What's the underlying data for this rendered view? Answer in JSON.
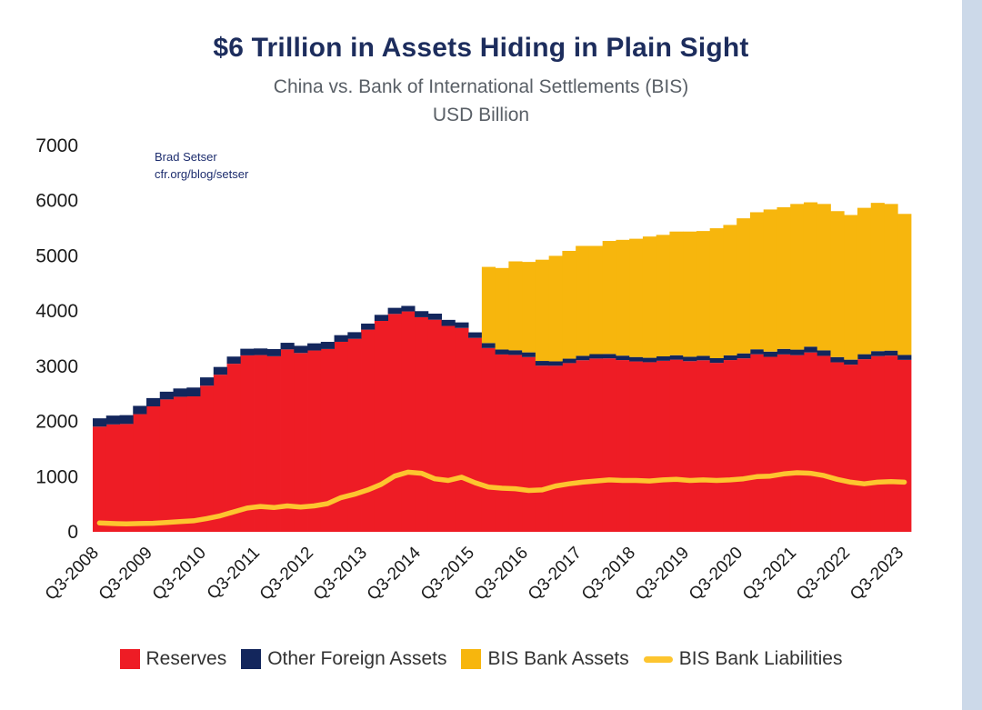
{
  "page": {
    "background": "#ffffff",
    "right_strip_color": "#ccd9e9"
  },
  "annotation": {
    "line1": "Brad Setser",
    "line2": "cfr.org/blog/setser"
  },
  "chart_data": {
    "type": "bar",
    "subtype": "stacked-bars-with-line-overlay",
    "title": "$6 Trillion in Assets Hiding in Plain Sight",
    "subtitle": "China vs. Bank of International Settlements (BIS)",
    "units_label": "USD Billion",
    "xlabel": "",
    "ylabel": "",
    "ylim": [
      0,
      7000
    ],
    "y_ticks": [
      0,
      1000,
      2000,
      3000,
      4000,
      5000,
      6000,
      7000
    ],
    "grid": "off",
    "legend_position": "bottom",
    "n_points": 61,
    "tick_every": 4,
    "x_start_quarter": "Q3-2008",
    "x_end_quarter": "Q3-2023",
    "x_tick_labels": [
      "Q3-2008",
      "Q3-2009",
      "Q3-2010",
      "Q3-2011",
      "Q3-2012",
      "Q3-2013",
      "Q3-2014",
      "Q3-2015",
      "Q3-2016",
      "Q3-2017",
      "Q3-2018",
      "Q3-2019",
      "Q3-2020",
      "Q3-2021",
      "Q3-2022",
      "Q3-2023"
    ],
    "series": [
      {
        "name": "Reserves",
        "type": "bar",
        "color": "#ee1c25",
        "values": [
          1906,
          1946,
          1954,
          2132,
          2273,
          2399,
          2447,
          2454,
          2648,
          2847,
          3045,
          3197,
          3202,
          3181,
          3305,
          3240,
          3285,
          3312,
          3443,
          3497,
          3663,
          3821,
          3948,
          3993,
          3888,
          3843,
          3730,
          3694,
          3514,
          3330,
          3213,
          3205,
          3166,
          3011,
          3009,
          3057,
          3109,
          3140,
          3143,
          3112,
          3087,
          3073,
          3099,
          3119,
          3092,
          3108,
          3061,
          3112,
          3143,
          3217,
          3170,
          3214,
          3201,
          3250,
          3188,
          3071,
          3029,
          3128,
          3184,
          3193,
          3115
        ]
      },
      {
        "name": "Other Foreign Assets",
        "type": "bar",
        "color": "#13265c",
        "values": [
          150,
          160,
          160,
          150,
          150,
          140,
          150,
          160,
          150,
          140,
          130,
          120,
          120,
          130,
          120,
          130,
          130,
          130,
          120,
          120,
          110,
          110,
          110,
          100,
          110,
          110,
          110,
          100,
          100,
          90,
          90,
          85,
          85,
          85,
          80,
          80,
          80,
          80,
          80,
          80,
          80,
          80,
          80,
          80,
          80,
          80,
          85,
          85,
          90,
          90,
          95,
          100,
          100,
          105,
          100,
          95,
          90,
          90,
          90,
          90,
          90
        ]
      },
      {
        "name": "BIS Bank Assets",
        "type": "bar",
        "color": "#f7b60d",
        "values": [
          0,
          0,
          0,
          0,
          0,
          0,
          0,
          0,
          0,
          0,
          0,
          0,
          0,
          0,
          0,
          0,
          0,
          0,
          0,
          0,
          0,
          0,
          0,
          0,
          0,
          0,
          0,
          0,
          0,
          1380,
          1477,
          1610,
          1639,
          1834,
          1911,
          1953,
          1991,
          1960,
          2047,
          2098,
          2143,
          2197,
          2201,
          2241,
          2268,
          2262,
          2354,
          2363,
          2447,
          2483,
          2575,
          2566,
          2639,
          2615,
          2652,
          2644,
          2621,
          2652,
          2686,
          2657,
          2555
        ]
      },
      {
        "name": "BIS Bank Liabilities",
        "type": "line",
        "color": "#fdc52f",
        "values": [
          160,
          150,
          145,
          150,
          155,
          170,
          185,
          200,
          240,
          290,
          360,
          430,
          460,
          440,
          470,
          450,
          470,
          510,
          620,
          680,
          760,
          860,
          1010,
          1080,
          1060,
          960,
          930,
          990,
          890,
          810,
          790,
          780,
          750,
          760,
          830,
          870,
          900,
          920,
          940,
          930,
          930,
          920,
          940,
          950,
          930,
          940,
          930,
          940,
          960,
          1000,
          1010,
          1050,
          1070,
          1060,
          1020,
          950,
          900,
          870,
          900,
          910,
          900
        ]
      }
    ]
  }
}
